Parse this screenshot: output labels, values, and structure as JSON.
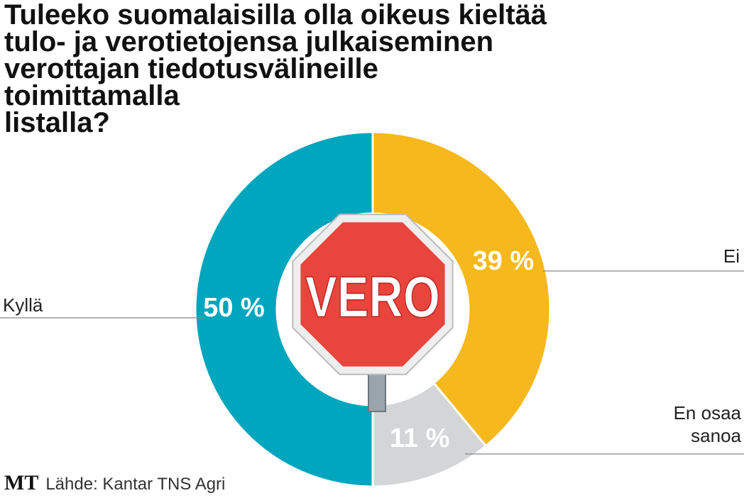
{
  "chart_data": {
    "type": "pie",
    "title": [
      "Tuleeko suomalaisilla olla oikeus kieltää",
      "tulo- ja verotietojensa julkaiseminen",
      "verottajan tiedotusvälineille",
      "toimittamalla",
      "listalla?"
    ],
    "categories": [
      "Ei",
      "En osaa sanoa",
      "Kyllä"
    ],
    "values": [
      39,
      11,
      50
    ],
    "value_labels": [
      "39 %",
      "11 %",
      "50 %"
    ],
    "colors": [
      "#f6b81c",
      "#d3d5d6",
      "#00a6bd"
    ],
    "sign_text": "VERO",
    "logo": "MT",
    "source": "Lähde: Kantar TNS Agri"
  }
}
